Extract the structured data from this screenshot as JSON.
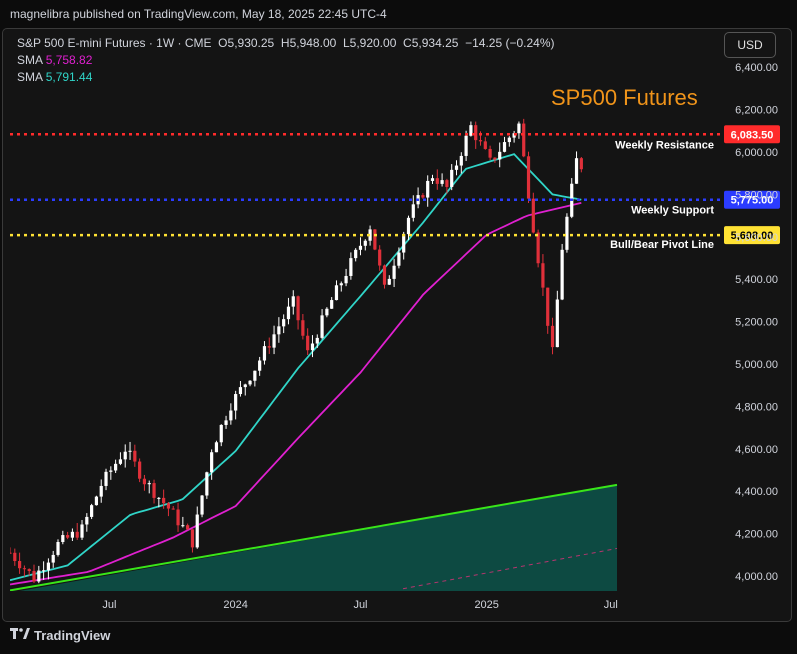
{
  "header": {
    "text": "magnelibra published on TradingView.com, May 18, 2025 22:45 UTC-4"
  },
  "legend": {
    "symbol": "S&P 500 E-mini Futures · 1W · CME",
    "o_label": "O",
    "o_val": "5,930.25",
    "h_label": "H",
    "h_val": "5,948.00",
    "l_label": "L",
    "l_val": "5,920.00",
    "c_label": "C",
    "c_val": "5,934.25",
    "change": "−14.25 (−0.24%)",
    "sma1_label": "SMA",
    "sma1_val": "5,758.82",
    "sma2_label": "SMA",
    "sma2_val": "5,791.44"
  },
  "currency": "USD",
  "title": "SP500 Futures",
  "footer": {
    "brand": "TradingView"
  },
  "colors": {
    "up": "#ffffff",
    "down": "#e0303a",
    "sma_slow": "#e020d0",
    "sma_fast": "#30d5c8",
    "resistance": "#ff2b2b",
    "support": "#2b3cff",
    "pivot": "#ffe234",
    "trend": "#39e619",
    "trend_fill": "#0d4d44",
    "title": "#f0941a"
  },
  "chart_data": {
    "type": "candlestick",
    "title": "SP500 Futures",
    "ylim": [
      3940,
      6520
    ],
    "yticks": [
      "4,000.00",
      "4,200.00",
      "4,400.00",
      "4,600.00",
      "4,800.00",
      "5,000.00",
      "5,200.00",
      "5,400.00",
      "5,600.00",
      "5,800.00",
      "6,000.00",
      "6,200.00",
      "6,400.00"
    ],
    "ytick_values": [
      4000,
      4200,
      4400,
      4600,
      4800,
      5000,
      5200,
      5400,
      5600,
      5800,
      6000,
      6200,
      6400
    ],
    "xticks": [
      {
        "label": "Jul",
        "date": "2023-07-01"
      },
      {
        "label": "2024",
        "date": "2024-01-01"
      },
      {
        "label": "Jul",
        "date": "2024-07-01"
      },
      {
        "label": "2025",
        "date": "2025-01-01"
      },
      {
        "label": "Jul",
        "date": "2025-07-01"
      }
    ],
    "x_range": [
      "2023-02-06",
      "2025-07-10"
    ],
    "last_candle_date": "2025-05-19",
    "close_path": [
      {
        "date": "2023-02-06",
        "value": 4110
      },
      {
        "date": "2023-03-13",
        "value": 3990
      },
      {
        "date": "2023-04-17",
        "value": 4150
      },
      {
        "date": "2023-05-22",
        "value": 4220
      },
      {
        "date": "2023-06-19",
        "value": 4430
      },
      {
        "date": "2023-07-24",
        "value": 4600
      },
      {
        "date": "2023-08-21",
        "value": 4450
      },
      {
        "date": "2023-09-25",
        "value": 4320
      },
      {
        "date": "2023-10-23",
        "value": 4200
      },
      {
        "date": "2023-10-30",
        "value": 4160
      },
      {
        "date": "2023-11-27",
        "value": 4600
      },
      {
        "date": "2023-12-25",
        "value": 4810
      },
      {
        "date": "2024-01-29",
        "value": 4980
      },
      {
        "date": "2024-03-04",
        "value": 5180
      },
      {
        "date": "2024-03-25",
        "value": 5290
      },
      {
        "date": "2024-04-15",
        "value": 5050
      },
      {
        "date": "2024-05-20",
        "value": 5300
      },
      {
        "date": "2024-07-15",
        "value": 5650
      },
      {
        "date": "2024-08-05",
        "value": 5350
      },
      {
        "date": "2024-09-09",
        "value": 5690
      },
      {
        "date": "2024-10-14",
        "value": 5890
      },
      {
        "date": "2024-11-04",
        "value": 5830
      },
      {
        "date": "2024-12-09",
        "value": 6120
      },
      {
        "date": "2025-01-06",
        "value": 5950
      },
      {
        "date": "2025-02-17",
        "value": 6130
      },
      {
        "date": "2025-03-10",
        "value": 5650
      },
      {
        "date": "2025-04-07",
        "value": 5050
      },
      {
        "date": "2025-04-21",
        "value": 5550
      },
      {
        "date": "2025-05-12",
        "value": 5960
      },
      {
        "date": "2025-05-19",
        "value": 5934
      }
    ],
    "sma_fast_path": [
      {
        "date": "2023-02-06",
        "value": 3980
      },
      {
        "date": "2023-05-01",
        "value": 4050
      },
      {
        "date": "2023-08-01",
        "value": 4290
      },
      {
        "date": "2023-10-15",
        "value": 4360
      },
      {
        "date": "2024-01-01",
        "value": 4590
      },
      {
        "date": "2024-04-01",
        "value": 4980
      },
      {
        "date": "2024-07-01",
        "value": 5320
      },
      {
        "date": "2024-10-01",
        "value": 5670
      },
      {
        "date": "2024-12-01",
        "value": 5920
      },
      {
        "date": "2025-02-10",
        "value": 5990
      },
      {
        "date": "2025-04-07",
        "value": 5800
      },
      {
        "date": "2025-05-19",
        "value": 5775
      }
    ],
    "sma_slow_path": [
      {
        "date": "2023-02-06",
        "value": 3960
      },
      {
        "date": "2023-06-01",
        "value": 4020
      },
      {
        "date": "2023-10-01",
        "value": 4180
      },
      {
        "date": "2024-01-01",
        "value": 4330
      },
      {
        "date": "2024-04-01",
        "value": 4650
      },
      {
        "date": "2024-07-01",
        "value": 4960
      },
      {
        "date": "2024-10-01",
        "value": 5330
      },
      {
        "date": "2025-01-01",
        "value": 5610
      },
      {
        "date": "2025-03-01",
        "value": 5700
      },
      {
        "date": "2025-05-19",
        "value": 5760
      }
    ],
    "trendline": [
      {
        "date": "2023-02-20",
        "value": 3940
      },
      {
        "date": "2025-07-10",
        "value": 4430
      }
    ],
    "trendline_lower": [
      {
        "date": "2024-09-01",
        "value": 3940
      },
      {
        "date": "2025-07-10",
        "value": 4130
      }
    ],
    "levels": [
      {
        "name": "Weekly Resistance",
        "value": 6083.5,
        "label": "6,083.50",
        "color": "#ff2b2b",
        "text_color": "#ffffff"
      },
      {
        "name": "Weekly Support",
        "value": 5775.0,
        "label": "5,775.00",
        "color": "#2b3cff",
        "text_color": "#ffffff"
      },
      {
        "name": "Bull/Bear Pivot Line",
        "value": 5608.0,
        "label": "5,608.00",
        "color": "#ffe234",
        "text_color": "#000000"
      }
    ]
  }
}
